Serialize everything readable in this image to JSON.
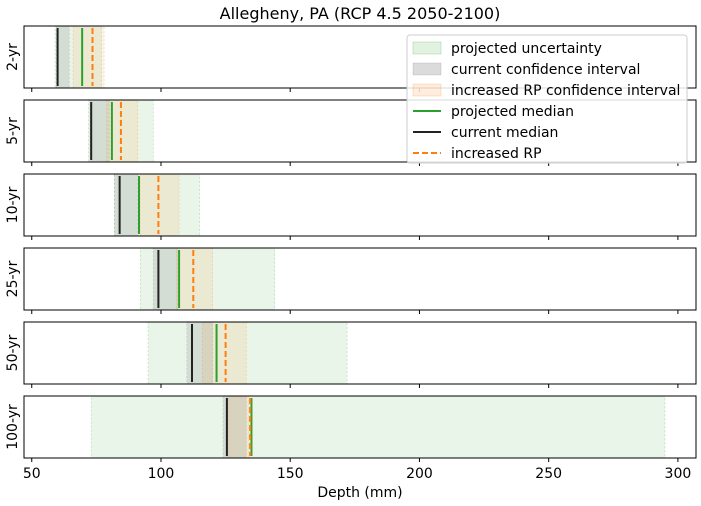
{
  "chart_data": {
    "type": "range",
    "title": "Allegheny, PA (RCP 4.5 2050-2100)",
    "xlabel": "Depth (mm)",
    "xlim": [
      47,
      307
    ],
    "xticks": [
      50,
      100,
      150,
      200,
      250,
      300
    ],
    "xtick_labels": [
      "50",
      "100",
      "150",
      "200",
      "250",
      "300"
    ],
    "grid": false,
    "legend_position": "top-right",
    "legend": [
      {
        "key": "proj_unc",
        "label": "projected uncertainty",
        "kind": "patch",
        "color": "#2ca02c",
        "alpha": 0.1
      },
      {
        "key": "cur_ci",
        "label": "current confidence interval",
        "kind": "patch",
        "color": "#7f7f7f",
        "alpha": 0.2
      },
      {
        "key": "inc_ci",
        "label": "increased RP confidence interval",
        "kind": "patch",
        "color": "#ff7f0e",
        "alpha": 0.1
      },
      {
        "key": "proj_median",
        "label": "projected median",
        "kind": "line",
        "color": "#2ca02c"
      },
      {
        "key": "cur_median",
        "label": "current median",
        "kind": "line",
        "color": "#222222"
      },
      {
        "key": "inc_rp",
        "label": "increased RP",
        "kind": "dashed",
        "color": "#ff7f0e"
      }
    ],
    "panels": [
      {
        "label": "2-yr",
        "proj_unc": [
          59,
          77
        ],
        "cur_ci": [
          59.5,
          64.5
        ],
        "inc_ci": [
          66,
          78
        ],
        "cur_median": 60,
        "proj_median": 69.5,
        "inc_rp": 73.5
      },
      {
        "label": "5-yr",
        "proj_unc": [
          72,
          97
        ],
        "cur_ci": [
          72.5,
          80
        ],
        "inc_ci": [
          79,
          91
        ],
        "cur_median": 73,
        "proj_median": 81,
        "inc_rp": 84.5
      },
      {
        "label": "10-yr",
        "proj_unc": [
          82,
          115
        ],
        "cur_ci": [
          82,
          91
        ],
        "inc_ci": [
          92,
          107
        ],
        "cur_median": 84,
        "proj_median": 91.5,
        "inc_rp": 99
      },
      {
        "label": "25-yr",
        "proj_unc": [
          92,
          144
        ],
        "cur_ci": [
          97,
          106.5
        ],
        "inc_ci": [
          106,
          120
        ],
        "cur_median": 99,
        "proj_median": 107,
        "inc_rp": 112.5
      },
      {
        "label": "50-yr",
        "proj_unc": [
          95,
          172
        ],
        "cur_ci": [
          110,
          120
        ],
        "inc_ci": [
          116,
          133
        ],
        "cur_median": 112,
        "proj_median": 121.5,
        "inc_rp": 125
      },
      {
        "label": "100-yr",
        "proj_unc": [
          73,
          295
        ],
        "cur_ci": [
          124,
          133
        ],
        "inc_ci": [
          126,
          134
        ],
        "cur_median": 125.5,
        "proj_median": 135,
        "inc_rp": 134.5
      }
    ]
  }
}
